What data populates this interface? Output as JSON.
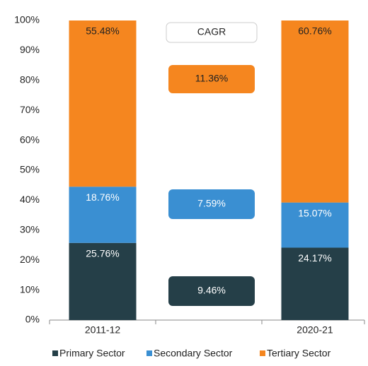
{
  "chart_data": {
    "type": "stacked_bar",
    "categories": [
      "2011-12",
      "2020-21"
    ],
    "series": [
      {
        "name": "Primary Sector",
        "color": "#253f48",
        "values": [
          25.76,
          24.17
        ],
        "value_labels": [
          "25.76%",
          "24.17%"
        ]
      },
      {
        "name": "Secondary Sector",
        "color": "#3a8fd2",
        "values": [
          18.76,
          15.07
        ],
        "value_labels": [
          "18.76%",
          "15.07%"
        ]
      },
      {
        "name": "Tertiary Sector",
        "color": "#f5861f",
        "values": [
          55.48,
          60.76
        ],
        "value_labels": [
          "55.48%",
          "60.76%"
        ]
      }
    ],
    "ylim": [
      0,
      100
    ],
    "yticks": [
      {
        "value": 0,
        "label": "0%"
      },
      {
        "value": 10,
        "label": "10%"
      },
      {
        "value": 20,
        "label": "20%"
      },
      {
        "value": 30,
        "label": "30%"
      },
      {
        "value": 40,
        "label": "40%"
      },
      {
        "value": 50,
        "label": "50%"
      },
      {
        "value": 60,
        "label": "60%"
      },
      {
        "value": 70,
        "label": "70%"
      },
      {
        "value": 80,
        "label": "80%"
      },
      {
        "value": 90,
        "label": "90%"
      },
      {
        "value": 100,
        "label": "100%"
      }
    ],
    "grid": false,
    "legend": "bottom",
    "annotations": [
      {
        "text": "CAGR",
        "color": "#ffffff"
      },
      {
        "text": "11.36%",
        "color": "#f5861f"
      },
      {
        "text": "7.59%",
        "color": "#3a8fd2"
      },
      {
        "text": "9.46%",
        "color": "#253f48"
      }
    ]
  }
}
